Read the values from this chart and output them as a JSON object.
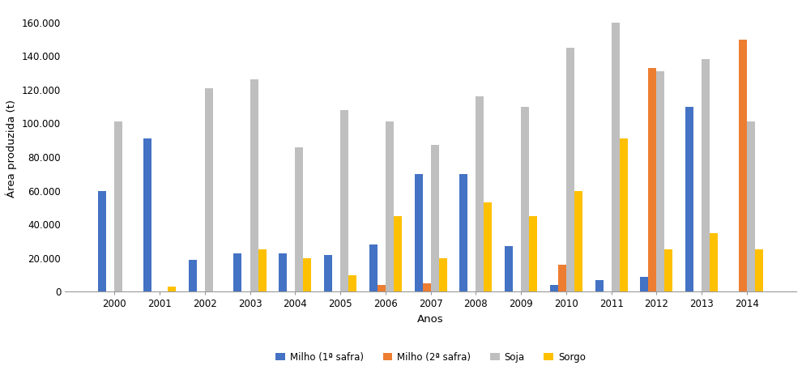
{
  "years": [
    2000,
    2001,
    2002,
    2003,
    2004,
    2005,
    2006,
    2007,
    2008,
    2009,
    2010,
    2011,
    2012,
    2013,
    2014
  ],
  "milho1": [
    60000,
    91000,
    19000,
    23000,
    23000,
    22000,
    28000,
    70000,
    70000,
    27000,
    4000,
    7000,
    9000,
    110000,
    0
  ],
  "milho2": [
    0,
    0,
    0,
    0,
    0,
    0,
    4000,
    5000,
    0,
    0,
    16000,
    0,
    133000,
    0,
    150000
  ],
  "soja": [
    101000,
    0,
    121000,
    126000,
    86000,
    108000,
    101000,
    87000,
    116000,
    110000,
    145000,
    160000,
    131000,
    138000,
    101000
  ],
  "sorgo": [
    0,
    3000,
    0,
    25000,
    20000,
    10000,
    45000,
    20000,
    53000,
    45000,
    60000,
    91000,
    25000,
    35000,
    25000
  ],
  "ylabel": "Área produzida (t)",
  "xlabel": "Anos",
  "ylim": [
    0,
    170000
  ],
  "yticks": [
    0,
    20000,
    40000,
    60000,
    80000,
    100000,
    120000,
    140000,
    160000
  ],
  "ytick_labels": [
    "0",
    "20.000",
    "40.000",
    "60.000",
    "80.000",
    "100.000",
    "120.000",
    "140.000",
    "160.000"
  ],
  "color_milho1": "#4472C4",
  "color_milho2": "#ED7D31",
  "color_soja": "#BFBFBF",
  "color_sorgo": "#FFC000",
  "legend_labels": [
    "Milho (1ª safra)",
    "Milho (2ª safra)",
    "Soja",
    "Sorgo"
  ],
  "bar_width": 0.18,
  "bg_color": "#FFFFFF"
}
